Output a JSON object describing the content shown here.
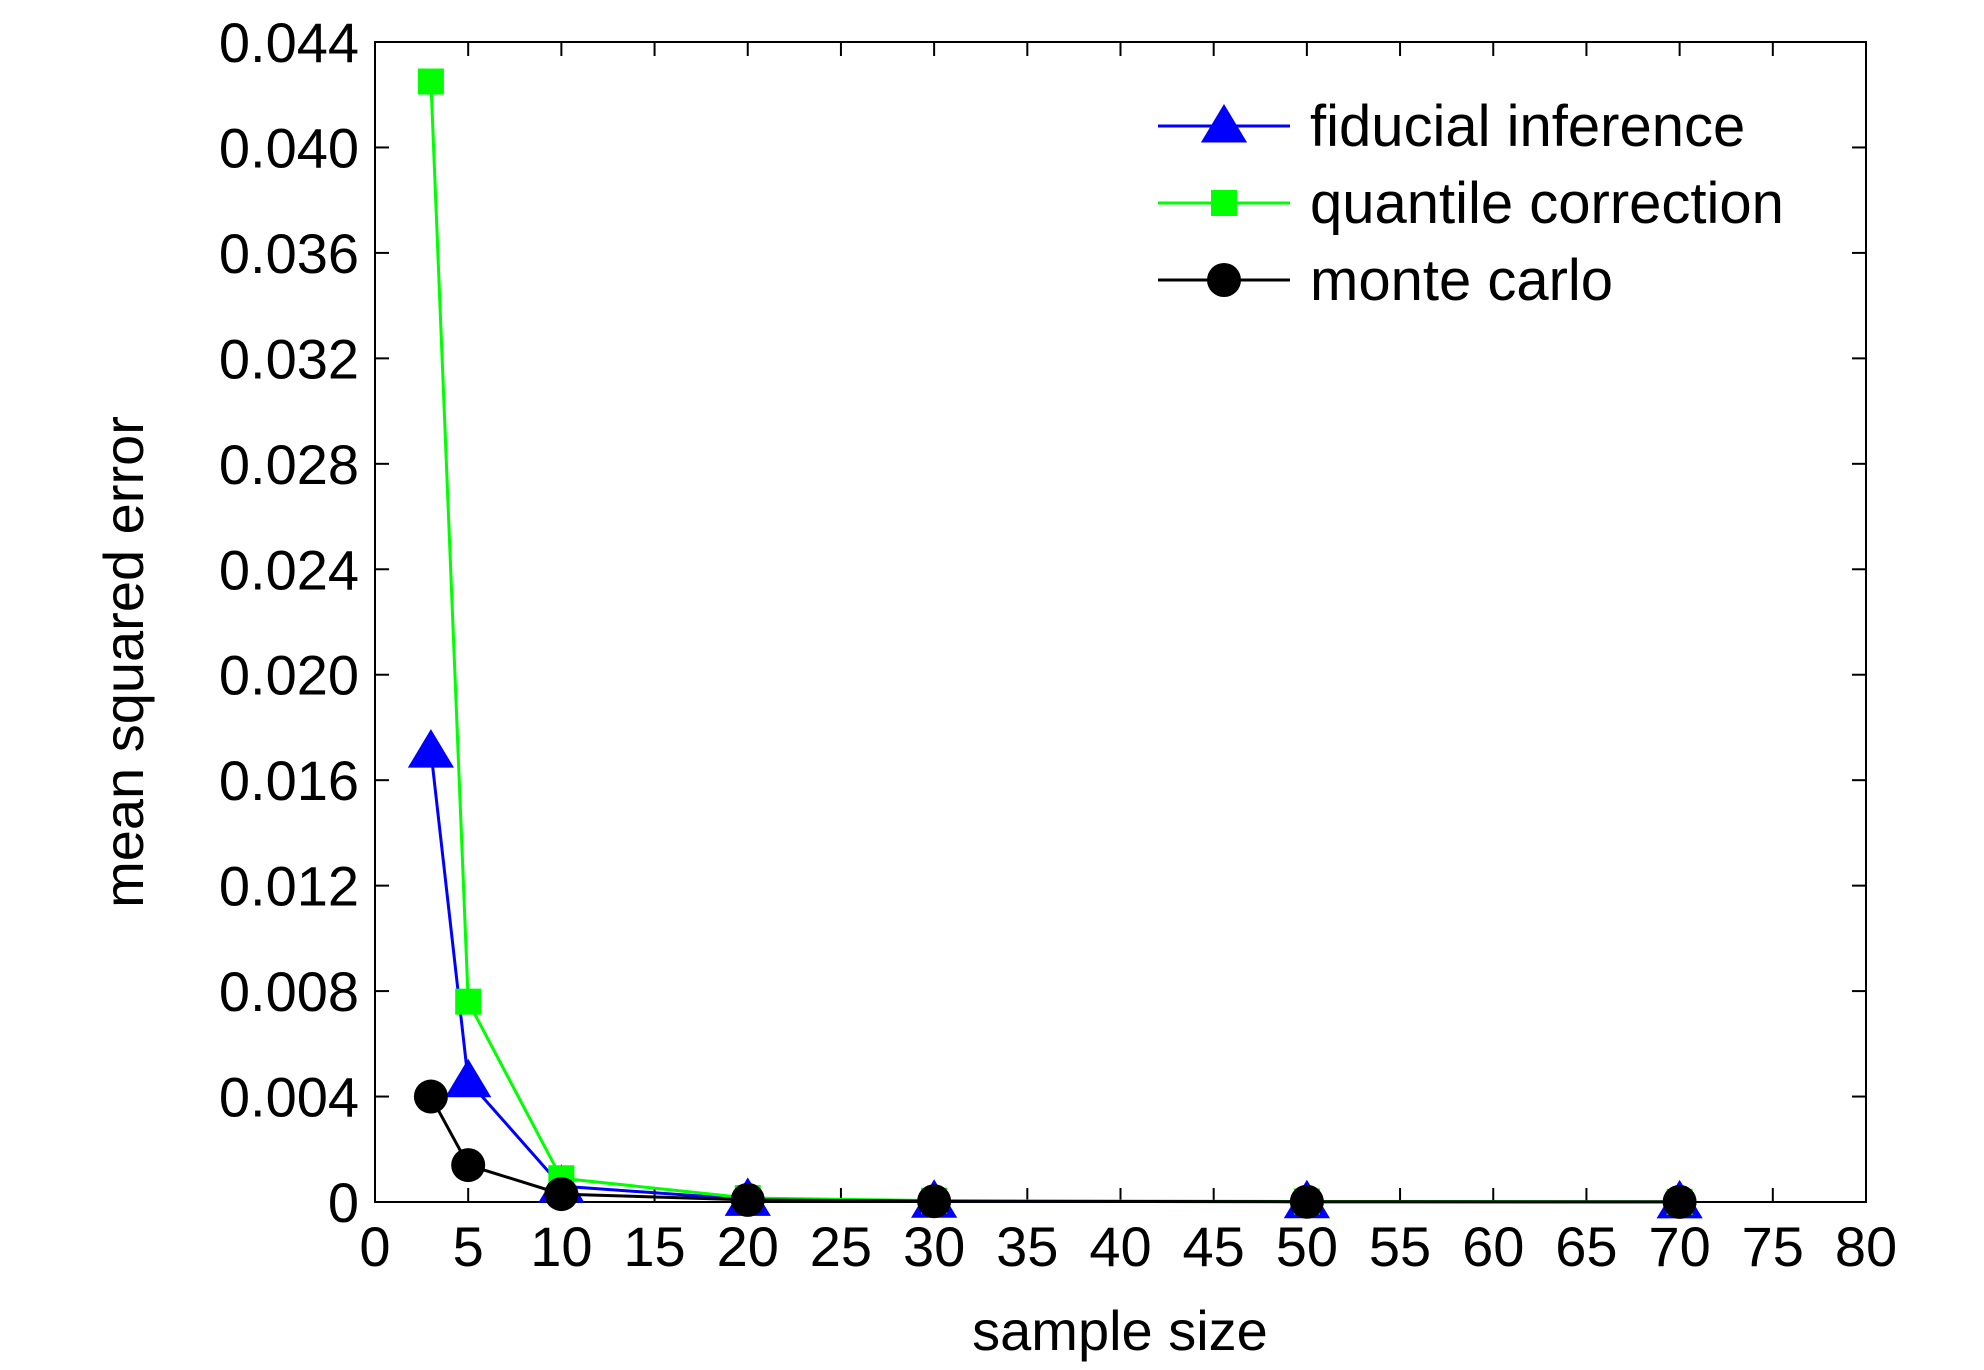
{
  "chart_data": {
    "type": "line",
    "xlabel": "sample size",
    "ylabel": "mean squared error",
    "xlim": [
      0,
      80
    ],
    "ylim": [
      0,
      0.044
    ],
    "xticks": [
      0,
      5,
      10,
      15,
      20,
      25,
      30,
      35,
      40,
      45,
      50,
      55,
      60,
      65,
      70,
      75,
      80
    ],
    "xtick_labels": [
      "0",
      "5",
      "10",
      "15",
      "20",
      "25",
      "30",
      "35",
      "40",
      "45",
      "50",
      "55",
      "60",
      "65",
      "70",
      "75",
      "80"
    ],
    "yticks": [
      0,
      0.004,
      0.008,
      0.012,
      0.016,
      0.02,
      0.024,
      0.028,
      0.032,
      0.036,
      0.04,
      0.044
    ],
    "ytick_labels": [
      "0",
      "0.004",
      "0.008",
      "0.012",
      "0.016",
      "0.020",
      "0.024",
      "0.028",
      "0.032",
      "0.036",
      "0.040",
      "0.044"
    ],
    "grid": false,
    "legend_position": "top-right",
    "x": [
      3,
      5,
      10,
      20,
      30,
      50,
      70
    ],
    "series": [
      {
        "name": "fiducial inference",
        "color": "#0000ff",
        "marker": "triangle",
        "values": [
          0.0171,
          0.0046,
          0.0006,
          0.0001,
          3e-05,
          1e-05,
          5e-06
        ]
      },
      {
        "name": "quantile correction",
        "color": "#00ff00",
        "marker": "square",
        "values": [
          0.0425,
          0.0076,
          0.0009,
          0.00015,
          5e-05,
          2e-05,
          8e-06
        ]
      },
      {
        "name": "monte carlo",
        "color": "#000000",
        "marker": "circle",
        "values": [
          0.004,
          0.0014,
          0.0003,
          8e-05,
          3e-05,
          1e-05,
          5e-06
        ]
      }
    ]
  }
}
